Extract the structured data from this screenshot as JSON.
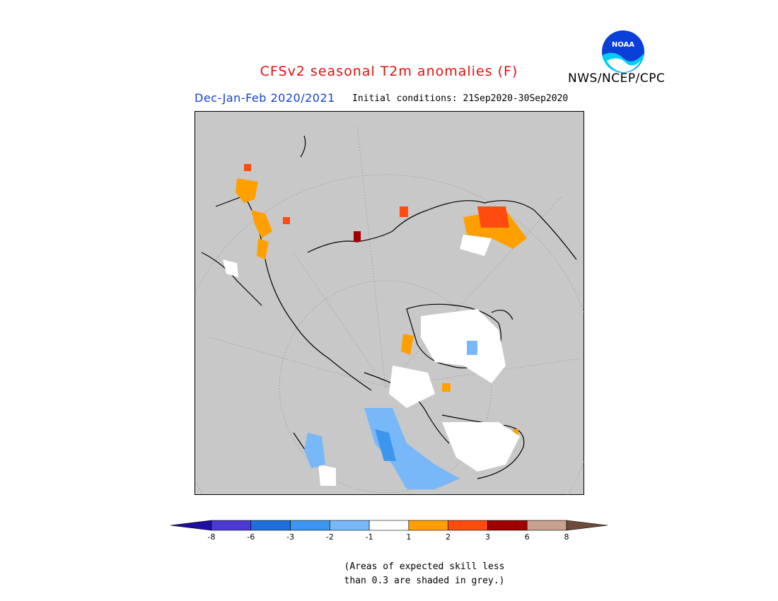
{
  "header": {
    "title": "CFSv2 seasonal T2m anomalies (F)",
    "agency": "NWS/NCEP/CPC",
    "season": "Dec-Jan-Feb 2020/2021",
    "initial_conditions": "Initial conditions: 21Sep2020-30Sep2020"
  },
  "logo": {
    "icon": "noaa-logo-icon"
  },
  "map": {
    "projection": "north-polar-stereographic",
    "background_color": "#c8c8c8",
    "land_outline_color": "#000000"
  },
  "legend": {
    "bins": [
      {
        "range": "< -8",
        "color": "#1f0fa0"
      },
      {
        "range": "-8 to -6",
        "color": "#4a3ad0"
      },
      {
        "range": "-6 to -3",
        "color": "#1e6fd8"
      },
      {
        "range": "-3 to -2",
        "color": "#3c96ee"
      },
      {
        "range": "-2 to -1",
        "color": "#78b8f8"
      },
      {
        "range": "-1 to 1",
        "color": "#ffffff"
      },
      {
        "range": "1 to 2",
        "color": "#ffa000"
      },
      {
        "range": "2 to 3",
        "color": "#ff4a10"
      },
      {
        "range": "3 to 6",
        "color": "#a00000"
      },
      {
        "range": "6 to 8",
        "color": "#c9a190"
      },
      {
        "range": "> 8",
        "color": "#6e4a3a"
      }
    ],
    "tick_labels": [
      "-8",
      "-6",
      "-3",
      "-2",
      "-1",
      "1",
      "2",
      "3",
      "6",
      "8"
    ]
  },
  "footnote": {
    "line1": "(Areas of expected skill less",
    "line2": "than 0.3 are shaded in grey.)"
  }
}
